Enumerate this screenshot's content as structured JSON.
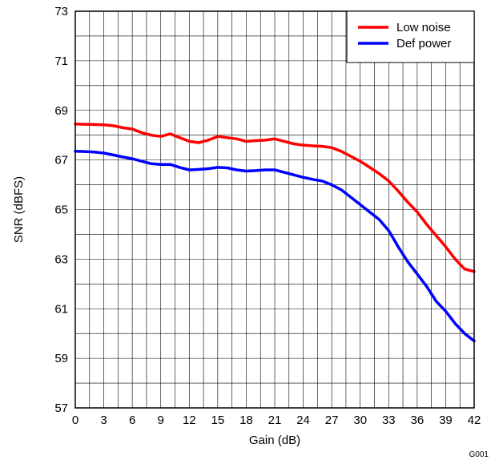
{
  "chart_data": {
    "type": "line",
    "xlabel": "Gain (dB)",
    "ylabel": "SNR (dBFS)",
    "xlim": [
      0,
      42
    ],
    "ylim": [
      57,
      73
    ],
    "xticks": [
      0,
      3,
      6,
      9,
      12,
      15,
      18,
      21,
      24,
      27,
      30,
      33,
      36,
      39,
      42
    ],
    "yticks": [
      57,
      59,
      61,
      63,
      65,
      67,
      69,
      71,
      73
    ],
    "grid": true,
    "legend_position": "top-right",
    "series": [
      {
        "name": "Low noise",
        "color": "#ff0000",
        "x": [
          0,
          1,
          2,
          3,
          4,
          5,
          6,
          7,
          8,
          9,
          10,
          11,
          12,
          13,
          14,
          15,
          16,
          17,
          18,
          19,
          20,
          21,
          22,
          23,
          24,
          25,
          26,
          27,
          28,
          29,
          30,
          31,
          32,
          33,
          34,
          35,
          36,
          37,
          38,
          39,
          40,
          41,
          42
        ],
        "values": [
          68.45,
          68.44,
          68.43,
          68.42,
          68.38,
          68.3,
          68.25,
          68.1,
          68.0,
          67.95,
          68.05,
          67.9,
          67.75,
          67.7,
          67.8,
          67.95,
          67.9,
          67.85,
          67.75,
          67.78,
          67.8,
          67.85,
          67.75,
          67.65,
          67.6,
          67.57,
          67.55,
          67.5,
          67.35,
          67.15,
          66.95,
          66.7,
          66.45,
          66.15,
          65.75,
          65.3,
          64.9,
          64.4,
          63.95,
          63.5,
          63.0,
          62.6,
          62.5
        ]
      },
      {
        "name": "Def power",
        "color": "#0000ff",
        "x": [
          0,
          1,
          2,
          3,
          4,
          5,
          6,
          7,
          8,
          9,
          10,
          11,
          12,
          13,
          14,
          15,
          16,
          17,
          18,
          19,
          20,
          21,
          22,
          23,
          24,
          25,
          26,
          27,
          28,
          29,
          30,
          31,
          32,
          33,
          34,
          35,
          36,
          37,
          38,
          39,
          40,
          41,
          42
        ],
        "values": [
          67.35,
          67.34,
          67.32,
          67.28,
          67.2,
          67.12,
          67.05,
          66.95,
          66.85,
          66.82,
          66.82,
          66.7,
          66.6,
          66.62,
          66.65,
          66.7,
          66.68,
          66.6,
          66.55,
          66.57,
          66.6,
          66.6,
          66.5,
          66.4,
          66.3,
          66.22,
          66.15,
          66.0,
          65.8,
          65.5,
          65.2,
          64.9,
          64.6,
          64.15,
          63.5,
          62.9,
          62.4,
          61.9,
          61.3,
          60.9,
          60.4,
          60.0,
          59.7
        ]
      }
    ],
    "figure_code": "G001"
  }
}
